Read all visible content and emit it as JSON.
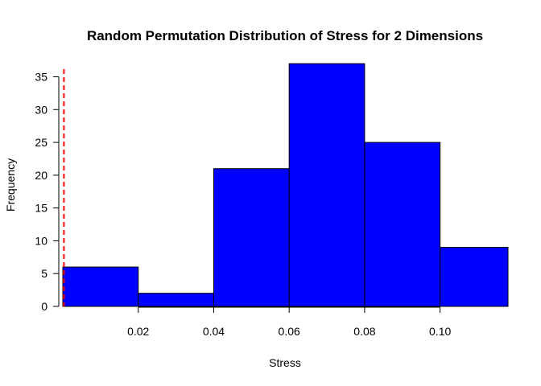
{
  "chart_data": {
    "type": "histogram",
    "title": "Random Permutation Distribution of Stress for 2 Dimensions",
    "xlabel": "Stress",
    "ylabel": "Frequency",
    "bins": [
      {
        "start": 0.0,
        "end": 0.02,
        "count": 6
      },
      {
        "start": 0.02,
        "end": 0.04,
        "count": 2
      },
      {
        "start": 0.04,
        "end": 0.06,
        "count": 21
      },
      {
        "start": 0.06,
        "end": 0.08,
        "count": 37
      },
      {
        "start": 0.08,
        "end": 0.1,
        "count": 25
      },
      {
        "start": 0.1,
        "end": 0.12,
        "count": 9
      }
    ],
    "xlim": [
      0.0,
      0.118
    ],
    "ylim": [
      0,
      36
    ],
    "xticks": [
      0.02,
      0.04,
      0.06,
      0.08,
      0.1
    ],
    "xtick_labels": [
      "0.02",
      "0.04",
      "0.06",
      "0.08",
      "0.10"
    ],
    "yticks": [
      0,
      5,
      10,
      15,
      20,
      25,
      30,
      35
    ],
    "ytick_labels": [
      "0",
      "5",
      "10",
      "15",
      "20",
      "25",
      "30",
      "35"
    ],
    "reference_line": {
      "x": 0.0003,
      "style": "dashed"
    },
    "bar_color": "#0000ff",
    "bar_edge_color": "#000000",
    "reference_line_color": "#ff0000",
    "grid": false,
    "legend": "none"
  }
}
